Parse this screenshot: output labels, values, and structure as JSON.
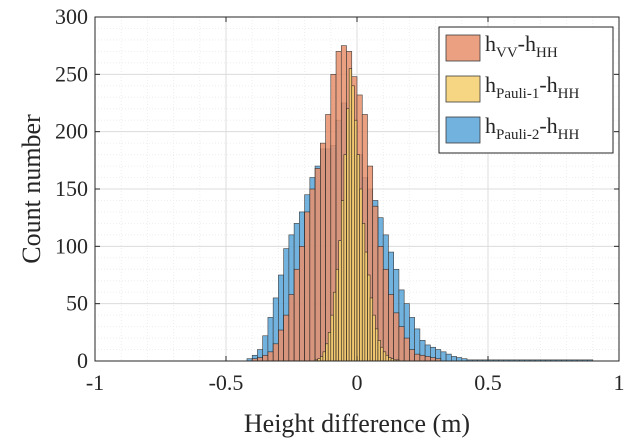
{
  "chart_data": {
    "type": "bar",
    "subtype": "overlaid-histogram",
    "xlabel": "Height difference (m)",
    "ylabel": "Count number",
    "xlim": [
      -1,
      1
    ],
    "ylim": [
      0,
      300
    ],
    "xticks": [
      -1,
      -0.5,
      0,
      0.5,
      1
    ],
    "xtick_labels": [
      "-1",
      "-0.5",
      "0",
      "0.5",
      "1"
    ],
    "yticks": [
      0,
      50,
      100,
      150,
      200,
      250,
      300
    ],
    "ytick_labels": [
      "0",
      "50",
      "100",
      "150",
      "200",
      "250",
      "300"
    ],
    "grid": true,
    "legend_position": "top-right",
    "series": [
      {
        "name": "hVV-hHH",
        "legend": {
          "a": "h",
          "a_sub": "VV",
          "b": "-h",
          "b_sub": "HH"
        },
        "color": "#E8906C",
        "bin_edges_start": -0.4,
        "bin_width": 0.02,
        "values": [
          2,
          3,
          5,
          8,
          15,
          27,
          40,
          58,
          80,
          100,
          130,
          150,
          168,
          190,
          215,
          250,
          270,
          275,
          270,
          248,
          232,
          215,
          170,
          135,
          100,
          80,
          58,
          42,
          30,
          20,
          10,
          6,
          5,
          4,
          3,
          2
        ]
      },
      {
        "name": "hPauli-1-hHH",
        "legend": {
          "a": "h",
          "a_sub": "Pauli-1",
          "b": "-h",
          "b_sub": "HH"
        },
        "color": "#F5D06E",
        "bin_edges_start": -0.16,
        "bin_width": 0.01,
        "values": [
          1,
          2,
          4,
          8,
          15,
          25,
          40,
          60,
          80,
          105,
          140,
          180,
          220,
          255,
          240,
          210,
          180,
          150,
          120,
          95,
          75,
          55,
          40,
          28,
          18,
          12,
          8,
          5,
          3,
          2,
          1,
          1
        ]
      },
      {
        "name": "hPauli-2-hHH",
        "legend": {
          "a": "h",
          "a_sub": "Pauli-2",
          "b": "-h",
          "b_sub": "HH"
        },
        "color": "#5AA5D9",
        "bin_edges_start": -0.42,
        "bin_width": 0.02,
        "values": [
          2,
          5,
          10,
          22,
          38,
          55,
          75,
          98,
          110,
          120,
          130,
          145,
          160,
          170,
          185,
          185,
          188,
          210,
          225,
          218,
          205,
          180,
          160,
          150,
          140,
          125,
          110,
          95,
          80,
          62,
          50,
          38,
          28,
          18,
          14,
          12,
          10,
          8,
          6,
          4,
          3,
          2,
          1,
          1,
          1,
          1,
          1,
          1,
          1,
          1,
          1,
          1,
          1,
          1,
          1,
          1,
          1,
          1,
          1,
          1,
          1,
          1,
          1,
          1,
          1,
          1
        ]
      }
    ]
  }
}
